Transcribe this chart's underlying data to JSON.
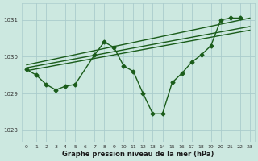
{
  "bg_color": "#cce8e0",
  "grid_color": "#aacccc",
  "line_color": "#1a5c1a",
  "line_width": 1.0,
  "marker": "D",
  "marker_size": 2.5,
  "xlabel": "Graphe pression niveau de la mer (hPa)",
  "xlim": [
    -0.5,
    23.5
  ],
  "ylim": [
    1027.7,
    1031.45
  ],
  "yticks": [
    1028,
    1029,
    1030,
    1031
  ],
  "xticks": [
    0,
    1,
    2,
    3,
    4,
    5,
    6,
    7,
    8,
    9,
    10,
    11,
    12,
    13,
    14,
    15,
    16,
    17,
    18,
    19,
    20,
    21,
    22,
    23
  ],
  "main_series": [
    [
      0,
      1029.65
    ],
    [
      1,
      1029.5
    ],
    [
      2,
      1029.25
    ],
    [
      3,
      1029.1
    ],
    [
      4,
      1029.2
    ],
    [
      5,
      1029.25
    ],
    [
      7,
      1030.05
    ],
    [
      8,
      1030.4
    ],
    [
      9,
      1030.25
    ],
    [
      10,
      1029.75
    ],
    [
      11,
      1029.6
    ],
    [
      12,
      1029.0
    ],
    [
      13,
      1028.45
    ],
    [
      14,
      1028.45
    ],
    [
      15,
      1029.3
    ],
    [
      16,
      1029.55
    ],
    [
      17,
      1029.85
    ],
    [
      18,
      1030.05
    ],
    [
      19,
      1030.3
    ],
    [
      20,
      1031.0
    ],
    [
      21,
      1031.05
    ],
    [
      22,
      1031.05
    ]
  ],
  "trend_lines": [
    {
      "x": [
        0,
        23
      ],
      "y": [
        1029.62,
        1030.72
      ]
    },
    {
      "x": [
        0,
        23
      ],
      "y": [
        1029.7,
        1030.82
      ]
    },
    {
      "x": [
        0,
        23
      ],
      "y": [
        1029.78,
        1031.05
      ]
    }
  ]
}
